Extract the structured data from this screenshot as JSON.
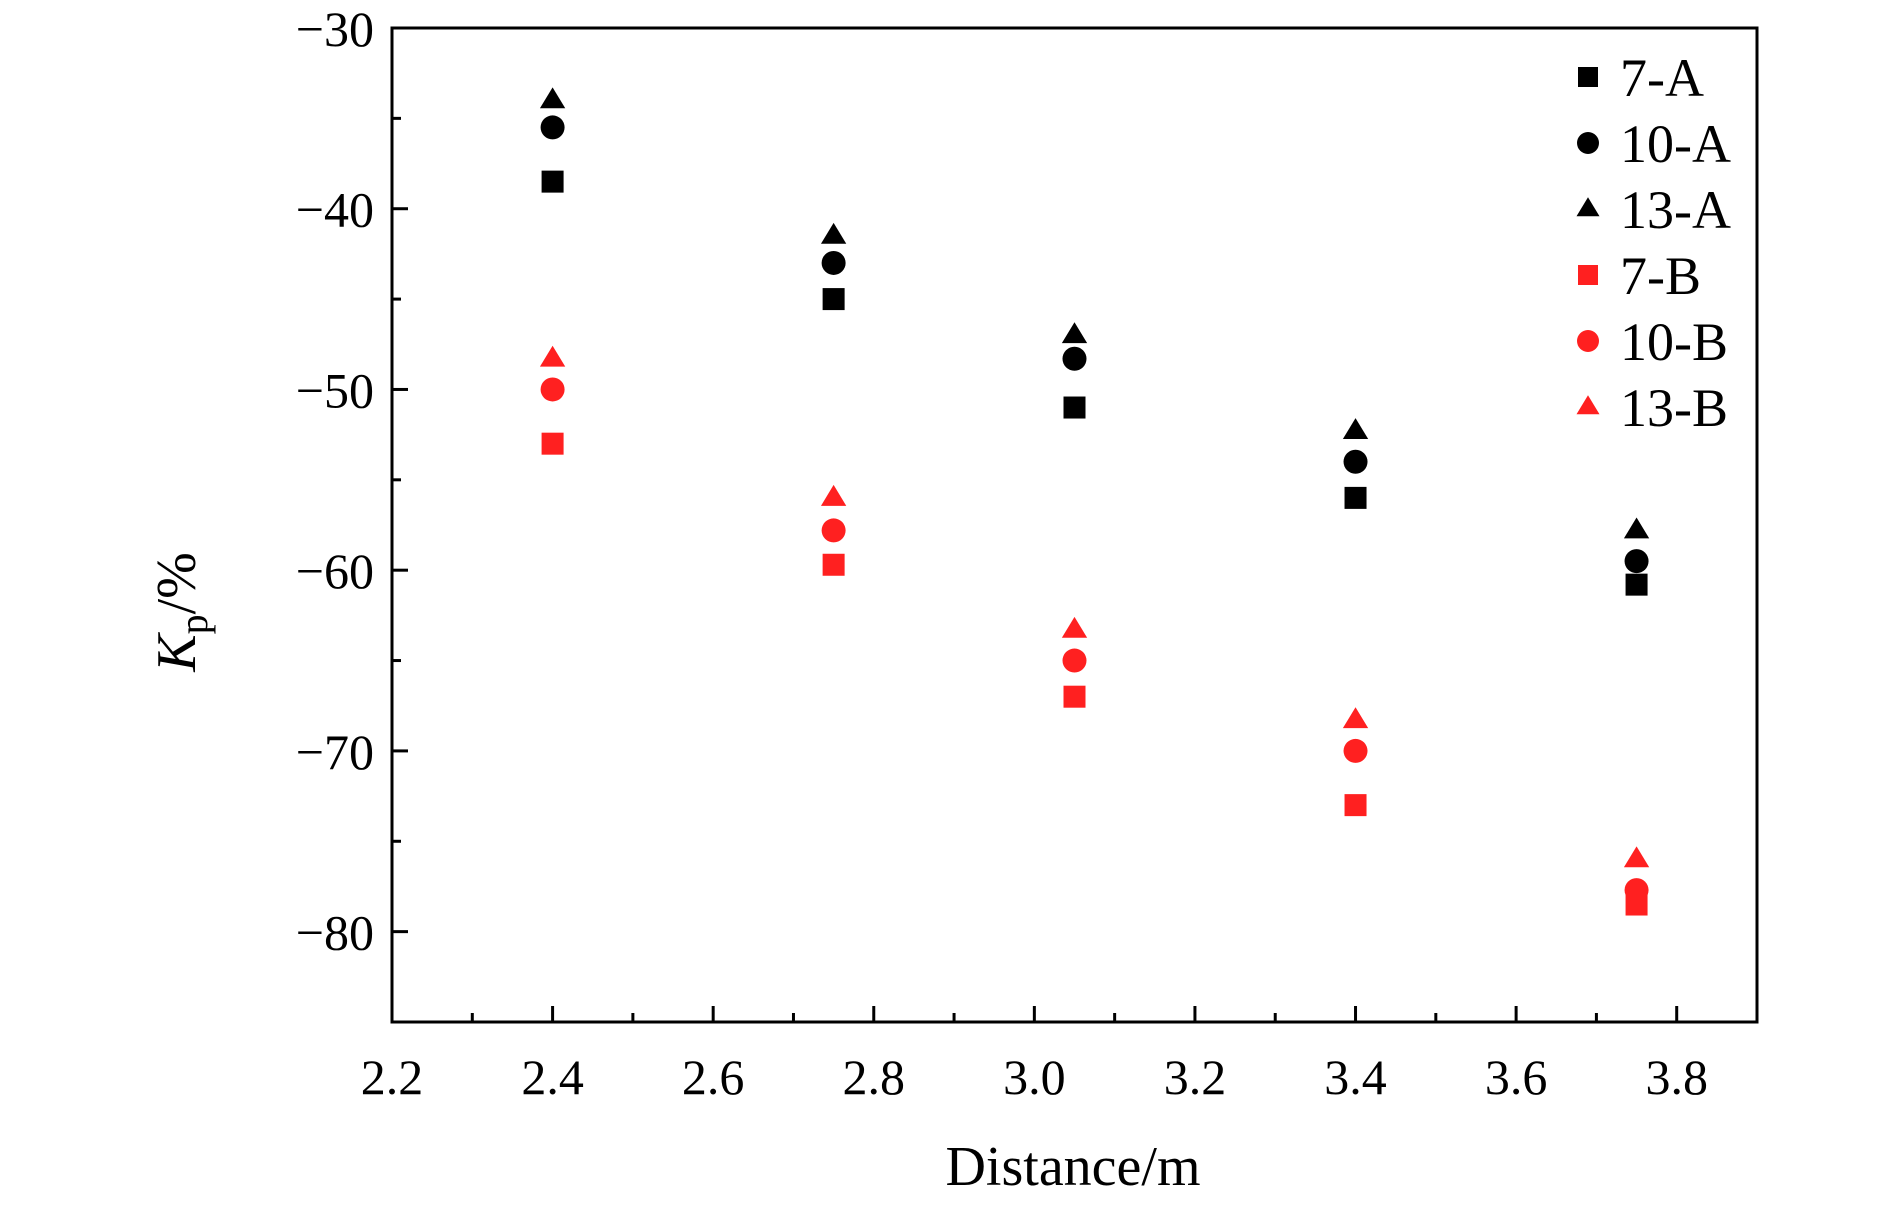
{
  "chart_data": {
    "type": "scatter",
    "title": "",
    "xlabel": "Distance/m",
    "ylabel": {
      "symbol": "K",
      "subscript": "p",
      "unit": "/%"
    },
    "xlim": [
      2.2,
      3.9
    ],
    "ylim": [
      -85,
      -30
    ],
    "xticks": [
      2.2,
      2.4,
      2.6,
      2.8,
      3.0,
      3.2,
      3.4,
      3.6,
      3.8
    ],
    "xtick_labels": [
      "2.2",
      "2.4",
      "2.6",
      "2.8",
      "3.0",
      "3.2",
      "3.4",
      "3.6",
      "3.8"
    ],
    "yticks": [
      -30,
      -40,
      -50,
      -60,
      -70,
      -80
    ],
    "ytick_labels": [
      "−30",
      "−40",
      "−50",
      "−60",
      "−70",
      "−80"
    ],
    "grid": false,
    "legend_position": "top-right",
    "x": [
      2.4,
      2.75,
      3.05,
      3.4,
      3.75
    ],
    "series": [
      {
        "name": "7-A",
        "marker": "square",
        "color": "#000000",
        "values": [
          -38.5,
          -45.0,
          -51.0,
          -56.0,
          -60.8
        ]
      },
      {
        "name": "10-A",
        "marker": "circle",
        "color": "#000000",
        "values": [
          -35.5,
          -43.0,
          -48.3,
          -54.0,
          -59.5
        ]
      },
      {
        "name": "13-A",
        "marker": "triangle",
        "color": "#000000",
        "values": [
          -34.0,
          -41.5,
          -47.0,
          -52.3,
          -57.8
        ]
      },
      {
        "name": "7-B",
        "marker": "square",
        "color": "#ff2020",
        "values": [
          -53.0,
          -59.7,
          -67.0,
          -73.0,
          -78.5
        ]
      },
      {
        "name": "10-B",
        "marker": "circle",
        "color": "#ff2020",
        "values": [
          -50.0,
          -57.8,
          -65.0,
          -70.0,
          -77.7
        ]
      },
      {
        "name": "13-B",
        "marker": "triangle",
        "color": "#ff2020",
        "values": [
          -48.3,
          -56.0,
          -63.3,
          -68.3,
          -76.0
        ]
      }
    ]
  }
}
